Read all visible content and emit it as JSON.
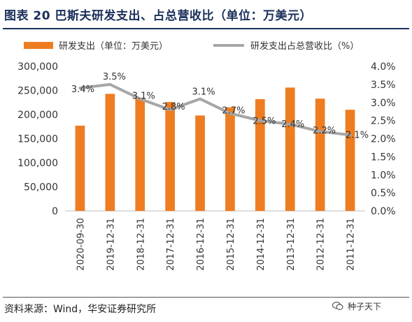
{
  "title": "图表 20  巴斯夫研发支出、占总营收比（单位：万美元）",
  "legend": {
    "bar_label": "研发支出（单位：万美元）",
    "line_label": "研发支出占总营收比（%）"
  },
  "source": "资料来源：Wind，华安证券研究所",
  "watermark": "种子天下",
  "colors": {
    "bar": "#ee7d22",
    "line": "#a6a6a6",
    "title": "#1a2f5a"
  },
  "chart_data": {
    "type": "bar",
    "categories": [
      "2020-09-30",
      "2019-12-31",
      "2018-12-31",
      "2017-12-31",
      "2016-12-31",
      "2015-12-31",
      "2014-12-31",
      "2013-12-31",
      "2012-12-31",
      "2011-12-31"
    ],
    "series": [
      {
        "name": "研发支出（单位：万美元）",
        "type": "bar",
        "axis": "left",
        "values": [
          177000,
          243000,
          235000,
          226000,
          198000,
          215000,
          232000,
          256000,
          233000,
          210000
        ]
      },
      {
        "name": "研发支出占总营收比（%）",
        "type": "line",
        "axis": "right",
        "values": [
          3.4,
          3.5,
          3.1,
          2.8,
          3.1,
          2.7,
          2.5,
          2.4,
          2.2,
          2.1
        ],
        "labels": [
          "3.4%",
          "3.5%",
          "3.1%",
          "2.8%",
          "3.1%",
          "2.7%",
          "2.5%",
          "2.4%",
          "2.2%",
          "2.1%"
        ]
      }
    ],
    "y_left": {
      "min": 0,
      "max": 300000,
      "ticks": [
        "0",
        "50,000",
        "100,000",
        "150,000",
        "200,000",
        "250,000",
        "300,000"
      ]
    },
    "y_right": {
      "min": 0,
      "max": 4.0,
      "ticks": [
        "0.0%",
        "0.5%",
        "1.0%",
        "1.5%",
        "2.0%",
        "2.5%",
        "3.0%",
        "3.5%",
        "4.0%"
      ]
    },
    "grid": false,
    "legend_position": "top"
  }
}
